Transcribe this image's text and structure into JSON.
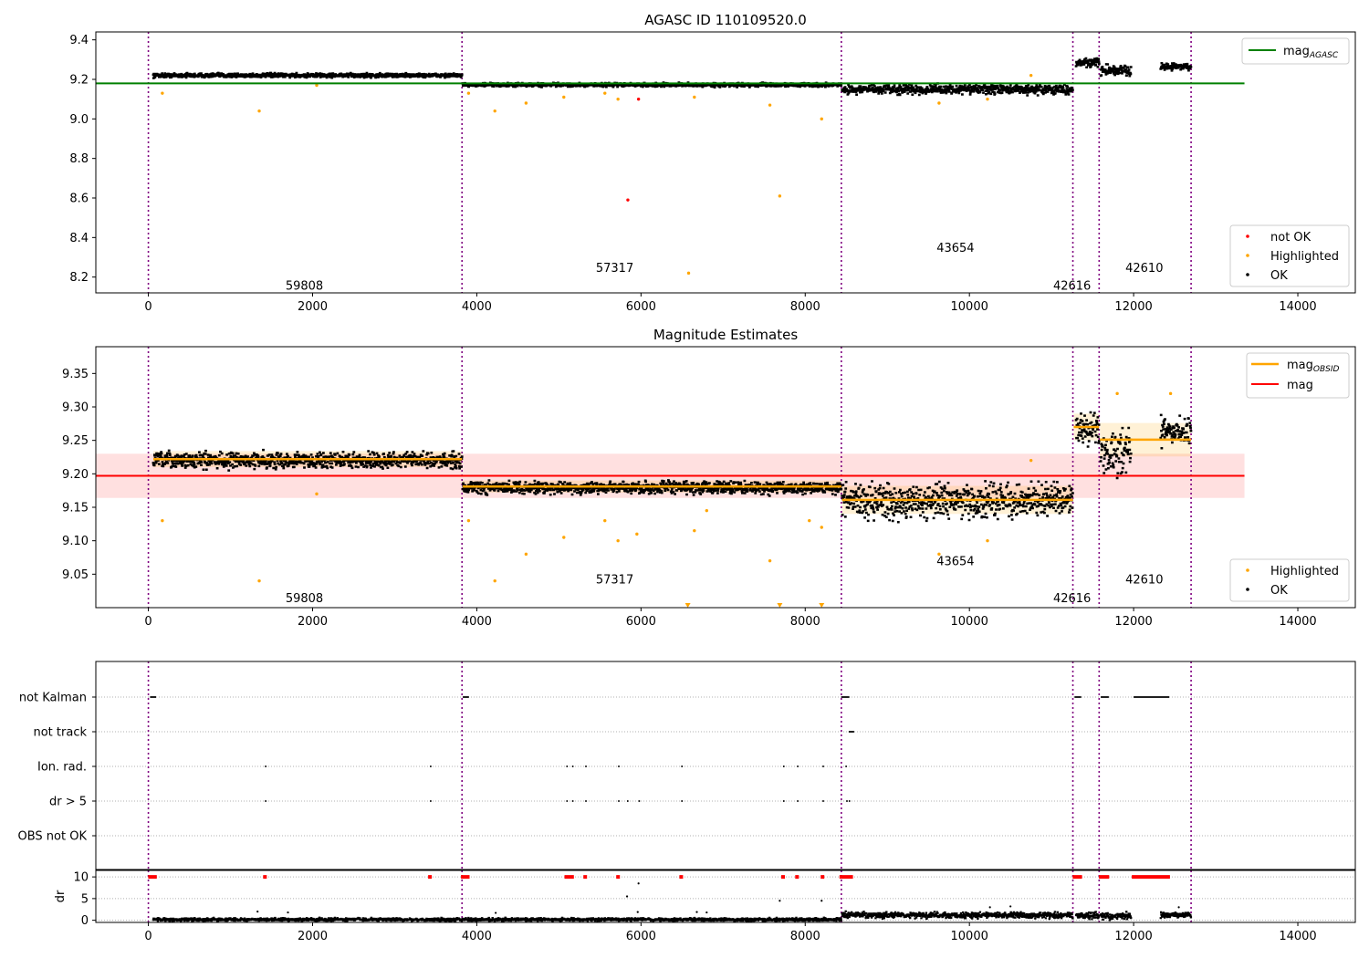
{
  "figure": {
    "title": "AGASC ID 110109520.0"
  },
  "chart_data": [
    {
      "type": "scatter",
      "title": "AGASC ID 110109520.0",
      "xlabel": "",
      "ylabel": "",
      "xlim": [
        -640,
        14700
      ],
      "ylim": [
        8.12,
        9.44
      ],
      "xticks": [
        0,
        2000,
        4000,
        6000,
        8000,
        10000,
        12000,
        14000
      ],
      "yticks": [
        8.2,
        8.4,
        8.6,
        8.8,
        9.0,
        9.2,
        9.4
      ],
      "grid": false,
      "obs_boundaries": [
        0,
        3820,
        8440,
        11260,
        11580,
        12700
      ],
      "obs_labels": [
        {
          "text": "59808",
          "x": 1900,
          "y": 8.16
        },
        {
          "text": "57317",
          "x": 5680,
          "y": 8.25
        },
        {
          "text": "43654",
          "x": 9830,
          "y": 8.35
        },
        {
          "text": "42616",
          "x": 11250,
          "y": 8.16
        },
        {
          "text": "42610",
          "x": 12130,
          "y": 8.25
        }
      ],
      "reference_line": {
        "name": "mag_AGASC",
        "value": 9.18,
        "x_range": [
          -640,
          13350
        ],
        "color": "#008000"
      },
      "ok_segments": [
        {
          "x": [
            60,
            3820
          ],
          "mean": 9.226,
          "noise": 0.009
        },
        {
          "x": [
            3830,
            8440
          ],
          "mean": 9.178,
          "noise": 0.008
        },
        {
          "x": [
            8450,
            11260
          ],
          "mean": 9.155,
          "noise": 0.02
        },
        {
          "x": [
            11300,
            11580
          ],
          "mean": 9.29,
          "noise": 0.018
        },
        {
          "x": [
            11600,
            11970
          ],
          "mean": 9.25,
          "noise": 0.025
        },
        {
          "x": [
            12330,
            12700
          ],
          "mean": 9.27,
          "noise": 0.015
        }
      ],
      "highlighted_points": [
        [
          170,
          9.13
        ],
        [
          1350,
          9.04
        ],
        [
          2050,
          9.17
        ],
        [
          3900,
          9.13
        ],
        [
          4220,
          9.04
        ],
        [
          4600,
          9.08
        ],
        [
          5060,
          9.11
        ],
        [
          5560,
          9.13
        ],
        [
          5720,
          9.1
        ],
        [
          6580,
          8.22
        ],
        [
          6650,
          9.11
        ],
        [
          7570,
          9.07
        ],
        [
          7690,
          8.61
        ],
        [
          8200,
          9.0
        ],
        [
          9630,
          9.08
        ],
        [
          10220,
          9.1
        ],
        [
          10750,
          9.22
        ]
      ],
      "not_ok_points": [
        [
          5840,
          8.59
        ],
        [
          5970,
          9.1
        ]
      ],
      "legends": [
        {
          "position": "top-right",
          "entries": [
            "mag_AGASC"
          ]
        },
        {
          "position": "lower-right",
          "entries": [
            "not OK",
            "Highlighted",
            "OK"
          ]
        }
      ],
      "series": [
        {
          "name": "not OK",
          "color": "#ff0000"
        },
        {
          "name": "Highlighted",
          "color": "#ffa500"
        },
        {
          "name": "OK",
          "color": "#000000"
        }
      ]
    },
    {
      "type": "scatter",
      "title": "Magnitude Estimates",
      "xlabel": "",
      "ylabel": "",
      "xlim": [
        -640,
        14700
      ],
      "ylim": [
        9.0,
        9.39
      ],
      "xticks": [
        0,
        2000,
        4000,
        6000,
        8000,
        10000,
        12000,
        14000
      ],
      "yticks": [
        9.05,
        9.1,
        9.15,
        9.2,
        9.25,
        9.3,
        9.35
      ],
      "grid": false,
      "obs_boundaries": [
        0,
        3820,
        8440,
        11260,
        11580,
        12700
      ],
      "obs_labels": [
        {
          "text": "59808",
          "x": 1900,
          "y": 9.015
        },
        {
          "text": "57317",
          "x": 5680,
          "y": 9.043
        },
        {
          "text": "43654",
          "x": 9830,
          "y": 9.07
        },
        {
          "text": "42616",
          "x": 11250,
          "y": 9.015
        },
        {
          "text": "42610",
          "x": 12130,
          "y": 9.043
        }
      ],
      "mag_line": {
        "name": "mag",
        "value": 9.197,
        "band": [
          9.164,
          9.23
        ],
        "x_range": [
          -640,
          13350
        ],
        "color": "#ff0000"
      },
      "mag_obsid": [
        {
          "x": [
            60,
            3820
          ],
          "value": 9.222,
          "band": [
            9.21,
            9.234
          ]
        },
        {
          "x": [
            3830,
            8440
          ],
          "value": 9.181,
          "band": [
            9.172,
            9.19
          ]
        },
        {
          "x": [
            8450,
            11260
          ],
          "value": 9.161,
          "band": [
            9.14,
            9.182
          ]
        },
        {
          "x": [
            11270,
            11580
          ],
          "value": 9.27,
          "band": [
            9.25,
            9.29
          ]
        },
        {
          "x": [
            11590,
            12700
          ],
          "value": 9.251,
          "band": [
            9.226,
            9.276
          ]
        }
      ],
      "ok_segments": [
        {
          "x": [
            60,
            3820
          ],
          "mean": 9.222,
          "noise": 0.01
        },
        {
          "x": [
            3830,
            8440
          ],
          "mean": 9.181,
          "noise": 0.008
        },
        {
          "x": [
            8450,
            11260
          ],
          "mean": 9.161,
          "noise": 0.022
        },
        {
          "x": [
            11300,
            11580
          ],
          "mean": 9.27,
          "noise": 0.02
        },
        {
          "x": [
            11600,
            11970
          ],
          "mean": 9.235,
          "noise": 0.03
        },
        {
          "x": [
            12330,
            12700
          ],
          "mean": 9.265,
          "noise": 0.018
        }
      ],
      "highlighted_points": [
        [
          170,
          9.13
        ],
        [
          1350,
          9.04
        ],
        [
          2050,
          9.17
        ],
        [
          3900,
          9.13
        ],
        [
          4220,
          9.04
        ],
        [
          4600,
          9.08
        ],
        [
          5060,
          9.105
        ],
        [
          5560,
          9.13
        ],
        [
          5720,
          9.1
        ],
        [
          5950,
          9.11
        ],
        [
          6650,
          9.115
        ],
        [
          6800,
          9.145
        ],
        [
          7570,
          9.07
        ],
        [
          8050,
          9.13
        ],
        [
          8200,
          9.12
        ],
        [
          9630,
          9.08
        ],
        [
          10220,
          9.1
        ],
        [
          10750,
          9.22
        ],
        [
          11800,
          9.32
        ],
        [
          12450,
          9.32
        ]
      ],
      "clipped_markers": [
        6570,
        7690,
        8200
      ],
      "legends": [
        {
          "position": "top-right",
          "entries": [
            "mag_OBSID",
            "mag"
          ]
        },
        {
          "position": "lower-right",
          "entries": [
            "Highlighted",
            "OK"
          ]
        }
      ]
    },
    {
      "type": "scatter",
      "title": "",
      "xlim": [
        -640,
        14700
      ],
      "xticks": [
        0,
        2000,
        4000,
        6000,
        8000,
        10000,
        12000,
        14000
      ],
      "obs_boundaries": [
        0,
        3820,
        8440,
        11260,
        11580,
        12700
      ],
      "flag_rows": [
        "not Kalman",
        "not track",
        "Ion. rad.",
        "dr > 5",
        "OBS not OK"
      ],
      "flags": {
        "not Kalman": [
          [
            20,
            80
          ],
          [
            3830,
            3890
          ],
          [
            8440,
            8520
          ],
          [
            11280,
            11350
          ],
          [
            11600,
            11680
          ],
          [
            12000,
            12420
          ]
        ],
        "not track": [
          [
            8530,
            8580
          ]
        ],
        "Ion. rad.": [
          1420,
          3430,
          5090,
          5160,
          5320,
          5720,
          6490,
          7730,
          7900,
          8210,
          8490
        ],
        "dr > 5": [
          1420,
          3430,
          5090,
          5160,
          5320,
          5720,
          5830,
          5970,
          6490,
          7730,
          7900,
          8210,
          8500,
          8530
        ]
      },
      "dr": {
        "ylabel": "dr",
        "ylim": [
          -0.5,
          11.5
        ],
        "yticks": [
          0,
          5,
          10
        ],
        "clip_value": 10,
        "segments": [
          {
            "x": [
              60,
              8440
            ],
            "mean": 0.4,
            "noise": 0.3
          },
          {
            "x": [
              8450,
              11260
            ],
            "mean": 1.4,
            "noise": 0.6
          },
          {
            "x": [
              11300,
              11580
            ],
            "mean": 1.3,
            "noise": 0.6
          },
          {
            "x": [
              11600,
              11970
            ],
            "mean": 1.2,
            "noise": 0.7
          },
          {
            "x": [
              12330,
              12700
            ],
            "mean": 1.5,
            "noise": 0.6
          }
        ],
        "outliers": [
          [
            1330,
            2.0
          ],
          [
            1700,
            1.8
          ],
          [
            4230,
            1.7
          ],
          [
            5830,
            5.5
          ],
          [
            5970,
            8.5
          ],
          [
            5960,
            1.9
          ],
          [
            6680,
            1.9
          ],
          [
            6800,
            1.8
          ],
          [
            7690,
            4.5
          ],
          [
            8200,
            4.5
          ],
          [
            10250,
            3.0
          ],
          [
            10500,
            3.2
          ],
          [
            12550,
            3.0
          ]
        ],
        "clipped": [
          [
            20,
            80
          ],
          [
            1420,
            1420
          ],
          [
            3430,
            3430
          ],
          [
            3830,
            3890
          ],
          [
            5090,
            5160
          ],
          [
            5320,
            5320
          ],
          [
            5720,
            5720
          ],
          [
            6490,
            6490
          ],
          [
            7730,
            7730
          ],
          [
            7900,
            7900
          ],
          [
            8210,
            8210
          ],
          [
            8440,
            8560
          ],
          [
            11280,
            11350
          ],
          [
            11600,
            11680
          ],
          [
            12000,
            12420
          ]
        ]
      }
    }
  ]
}
